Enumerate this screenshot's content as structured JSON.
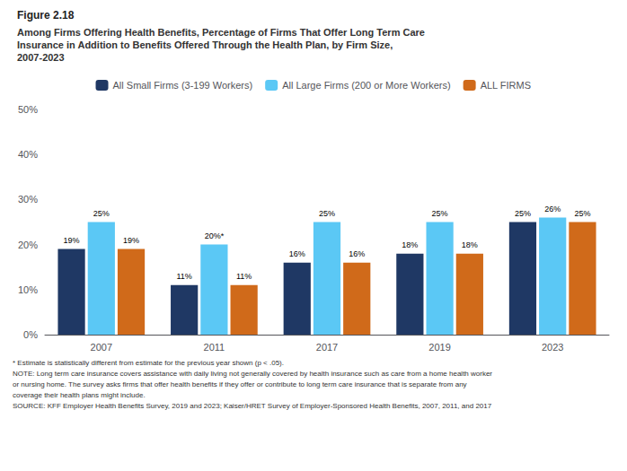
{
  "chart_data": {
    "type": "bar",
    "title": "Figure 2.18",
    "subtitle": "Among Firms Offering Health Benefits, Percentage of Firms That Offer Long Term Care\nInsurance in Addition to Benefits Offered Through the Health Plan, by Firm Size,\n2007-2023",
    "categories": [
      "2007",
      "2011",
      "2017",
      "2019",
      "2023"
    ],
    "series": [
      {
        "name": "All Small Firms (3-199 Workers)",
        "color": "#1f3864",
        "values": [
          19,
          11,
          16,
          18,
          25
        ],
        "value_labels": [
          "19%",
          "11%",
          "16%",
          "18%",
          "25%"
        ]
      },
      {
        "name": "All Large Firms (200 or More Workers)",
        "color": "#5bc8f5",
        "values": [
          25,
          20,
          25,
          25,
          26
        ],
        "value_labels": [
          "25%",
          "20%*",
          "25%",
          "25%",
          "26%"
        ]
      },
      {
        "name": "ALL FIRMS",
        "color": "#d06a1a",
        "values": [
          19,
          11,
          16,
          18,
          25
        ],
        "value_labels": [
          "19%",
          "11%",
          "16%",
          "18%",
          "25%"
        ]
      }
    ],
    "ylim": [
      0,
      50
    ],
    "yticks": [
      {
        "value": 0,
        "label": "0%"
      },
      {
        "value": 10,
        "label": "10%"
      },
      {
        "value": 20,
        "label": "20%"
      },
      {
        "value": 30,
        "label": "30%"
      },
      {
        "value": 40,
        "label": "40%"
      },
      {
        "value": 50,
        "label": "50%"
      }
    ],
    "grid": false,
    "legend": "top",
    "data_labels": true,
    "annotations": [
      "* Estimate is statistically different from estimate for the previous year shown (p < .05).",
      "NOTE: Long term care insurance covers assistance with daily living not generally covered by health insurance such as care from a home health worker\nor nursing home. The survey asks firms that offer health benefits if they offer or contribute to long term care insurance that is separate from any\ncoverage their health plans might include.",
      "SOURCE: KFF Employer Health Benefits Survey, 2019 and 2023; Kaiser/HRET Survey of Employer-Sponsored Health Benefits, 2007, 2011, and 2017"
    ]
  }
}
